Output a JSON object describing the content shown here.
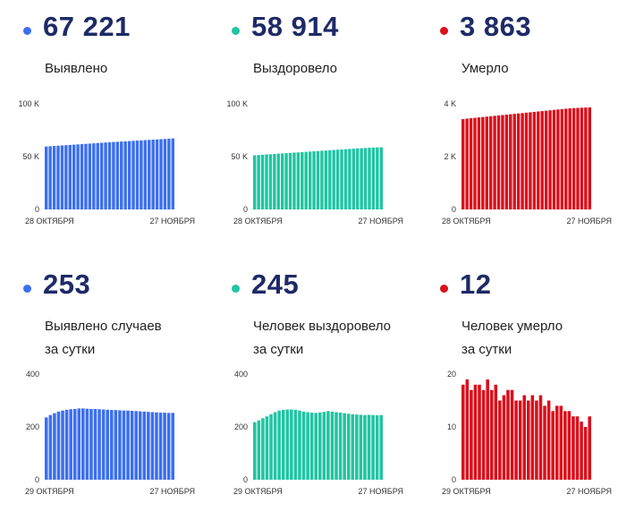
{
  "panels": [
    {
      "color": "#3c6fef",
      "value": "67 221",
      "label": "Выявлено",
      "y_ticks": [
        "100 K",
        "50 K",
        "0"
      ],
      "x_ticks": [
        "28 ОКТЯБРЯ",
        "27 НОЯБРЯ"
      ]
    },
    {
      "color": "#21c4a3",
      "value": "58 914",
      "label": "Выздоровело",
      "y_ticks": [
        "100 K",
        "50 K",
        "0"
      ],
      "x_ticks": [
        "28 ОКТЯБРЯ",
        "27 НОЯБРЯ"
      ]
    },
    {
      "color": "#d9101c",
      "value": "3 863",
      "label": "Умерло",
      "y_ticks": [
        "4 K",
        "2 K",
        "0"
      ],
      "x_ticks": [
        "28 ОКТЯБРЯ",
        "27 НОЯБРЯ"
      ]
    },
    {
      "color": "#3c6fef",
      "value": "253",
      "label": "Выявлено случаев\nза сутки",
      "y_ticks": [
        "400",
        "200",
        "0"
      ],
      "x_ticks": [
        "29 ОКТЯБРЯ",
        "27 НОЯБРЯ"
      ]
    },
    {
      "color": "#21c4a3",
      "value": "245",
      "label": "Человек выздоровело\nза сутки",
      "y_ticks": [
        "400",
        "200",
        "0"
      ],
      "x_ticks": [
        "29 ОКТЯБРЯ",
        "27 НОЯБРЯ"
      ]
    },
    {
      "color": "#d9101c",
      "value": "12",
      "label": "Человек умерло\nза сутки",
      "y_ticks": [
        "20",
        "10",
        "0"
      ],
      "x_ticks": [
        "29 ОКТЯБРЯ",
        "27 НОЯБРЯ"
      ]
    }
  ],
  "chart_data": [
    {
      "type": "bar",
      "x_range": [
        "28 октября",
        "27 ноября"
      ],
      "ylim": [
        0,
        100000
      ],
      "values": [
        59600,
        59850,
        60100,
        60350,
        60600,
        60850,
        61100,
        61350,
        61600,
        61850,
        62100,
        62350,
        62600,
        62850,
        63100,
        63350,
        63600,
        63850,
        64050,
        64300,
        64500,
        64750,
        64950,
        65200,
        65400,
        65650,
        65850,
        66100,
        66300,
        66500,
        66750,
        67000,
        67221
      ]
    },
    {
      "type": "bar",
      "x_range": [
        "28 октября",
        "27 ноября"
      ],
      "ylim": [
        0,
        100000
      ],
      "values": [
        51300,
        51550,
        51800,
        52050,
        52300,
        52550,
        52800,
        53050,
        53300,
        53550,
        53800,
        54050,
        54300,
        54550,
        54800,
        55050,
        55300,
        55550,
        55800,
        56050,
        56300,
        56550,
        56800,
        57050,
        57300,
        57550,
        57800,
        58000,
        58200,
        58400,
        58600,
        58750,
        58914
      ]
    },
    {
      "type": "bar",
      "x_range": [
        "28 октября",
        "27 ноября"
      ],
      "ylim": [
        0,
        4000
      ],
      "values": [
        3420,
        3440,
        3455,
        3470,
        3485,
        3500,
        3515,
        3530,
        3545,
        3560,
        3575,
        3590,
        3605,
        3620,
        3635,
        3650,
        3665,
        3680,
        3695,
        3710,
        3725,
        3740,
        3755,
        3770,
        3785,
        3800,
        3815,
        3828,
        3838,
        3846,
        3853,
        3858,
        3863
      ]
    },
    {
      "type": "bar",
      "x_range": [
        "29 октября",
        "27 ноября"
      ],
      "ylim": [
        0,
        400
      ],
      "values": [
        236,
        245,
        252,
        258,
        262,
        265,
        267,
        268,
        270,
        270,
        269,
        268,
        268,
        267,
        266,
        265,
        264,
        264,
        263,
        262,
        262,
        261,
        260,
        259,
        258,
        257,
        256,
        255,
        254,
        254,
        253,
        253
      ]
    },
    {
      "type": "bar",
      "x_range": [
        "29 октября",
        "27 ноября"
      ],
      "ylim": [
        0,
        400
      ],
      "values": [
        218,
        225,
        233,
        240,
        248,
        256,
        262,
        265,
        266,
        266,
        265,
        262,
        258,
        256,
        254,
        253,
        255,
        257,
        260,
        258,
        256,
        254,
        252,
        250,
        248,
        247,
        246,
        245,
        246,
        245,
        244,
        245
      ]
    },
    {
      "type": "bar",
      "x_range": [
        "29 октября",
        "27 ноября"
      ],
      "ylim": [
        0,
        20
      ],
      "values": [
        18,
        19,
        17,
        18,
        18,
        17,
        19,
        17,
        18,
        15,
        16,
        17,
        17,
        15,
        15,
        16,
        15,
        16,
        15,
        16,
        14,
        15,
        13,
        14,
        14,
        13,
        13,
        12,
        12,
        11,
        10,
        12
      ]
    }
  ]
}
